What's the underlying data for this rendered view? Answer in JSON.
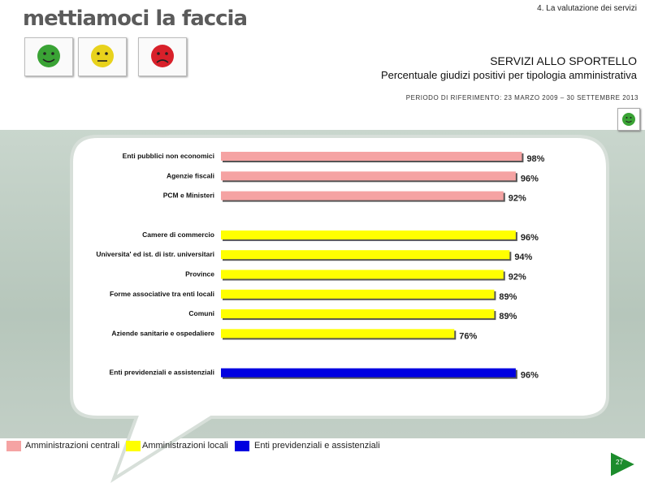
{
  "header": {
    "section_label": "4. La valutazione dei servizi",
    "logo_text": "mettiamoci la faccia",
    "main_title": "SERVIZI ALLO SPORTELLO",
    "subtitle": "Percentuale giudizi positivi per tipologia amministrativa",
    "period": "PERIODO DI RIFERIMENTO: 23 MARZO 2009 – 30 SETTEMBRE 2013"
  },
  "faces": [
    {
      "name": "green-face-icon",
      "color": "#3aa335"
    },
    {
      "name": "yellow-face-icon",
      "color": "#e8d21c"
    },
    {
      "name": "red-face-icon",
      "color": "#d8202a"
    }
  ],
  "colors": {
    "centrali": "#f5a3a3",
    "locali": "#ffff00",
    "previdenziali": "#0000e0"
  },
  "chart_data": {
    "type": "bar",
    "orientation": "horizontal",
    "title": "",
    "xlabel": "",
    "ylabel": "",
    "xlim": [
      0,
      100
    ],
    "groups": [
      {
        "name": "Amministrazioni centrali",
        "color": "#f5a3a3",
        "items": [
          {
            "label": "Enti pubblici non economici",
            "value": 98,
            "value_label": "98%"
          },
          {
            "label": "Agenzie fiscali",
            "value": 96,
            "value_label": "96%"
          },
          {
            "label": "PCM e Ministeri",
            "value": 92,
            "value_label": "92%"
          }
        ]
      },
      {
        "name": "Amministrazioni locali",
        "color": "#ffff00",
        "items": [
          {
            "label": "Camere di commercio",
            "value": 96,
            "value_label": "96%"
          },
          {
            "label": "Universita' ed ist. di istr. universitari",
            "value": 94,
            "value_label": "94%"
          },
          {
            "label": "Province",
            "value": 92,
            "value_label": "92%"
          },
          {
            "label": "Forme associative tra enti locali",
            "value": 89,
            "value_label": "89%"
          },
          {
            "label": "Comuni",
            "value": 89,
            "value_label": "89%"
          },
          {
            "label": "Aziende sanitarie e ospedaliere",
            "value": 76,
            "value_label": "76%"
          }
        ]
      },
      {
        "name": "Enti previdenziali e assistenziali",
        "color": "#0000e0",
        "items": [
          {
            "label": "Enti previdenziali e assistenziali",
            "value": 96,
            "value_label": "96%"
          }
        ]
      }
    ],
    "legend": [
      "Amministrazioni centrali",
      "Amministrazioni locali",
      "Enti previdenziali e assistenziali"
    ],
    "legend_position": "bottom-left",
    "grid": false
  },
  "footer": {
    "page_number": "27"
  }
}
